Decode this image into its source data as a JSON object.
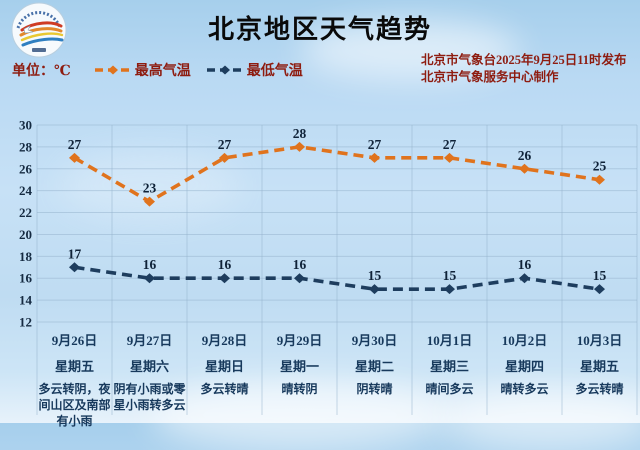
{
  "header": {
    "title": "北京地区天气趋势",
    "unit_label": "单位：℃",
    "issued_line1": "北京市气象台2025年9月25日11时发布",
    "issued_line2": "北京市气象服务中心制作"
  },
  "colors": {
    "high_temp": "#e0731d",
    "low_temp": "#1e3d5e",
    "accent_text": "#8e1c10",
    "grid": "#93b1cc",
    "day_text": "#17395c"
  },
  "chart_data": {
    "type": "line",
    "title": "北京地区天气趋势",
    "categories": [
      "9月26日",
      "9月27日",
      "9月28日",
      "9月29日",
      "9月30日",
      "10月1日",
      "10月2日",
      "10月3日"
    ],
    "weekdays": [
      "星期五",
      "星期六",
      "星期日",
      "星期一",
      "星期二",
      "星期三",
      "星期四",
      "星期五"
    ],
    "weather": [
      "多云转阴，夜间山区及南部有小雨",
      "阴有小雨或零星小雨转多云",
      "多云转晴",
      "晴转阴",
      "阴转晴",
      "晴间多云",
      "晴转多云",
      "多云转晴"
    ],
    "series": [
      {
        "name": "最高气温",
        "values": [
          27,
          23,
          27,
          28,
          27,
          27,
          26,
          25
        ],
        "color": "#e0731d"
      },
      {
        "name": "最低气温",
        "values": [
          17,
          16,
          16,
          16,
          15,
          15,
          16,
          15
        ],
        "color": "#1e3d5e"
      }
    ],
    "ylabel": "℃",
    "xlabel": "",
    "ylim": [
      12,
      30
    ],
    "ytick_step": 2,
    "grid": true,
    "line_style": "dashed",
    "marker": "diamond",
    "legend_position": "top-left"
  }
}
